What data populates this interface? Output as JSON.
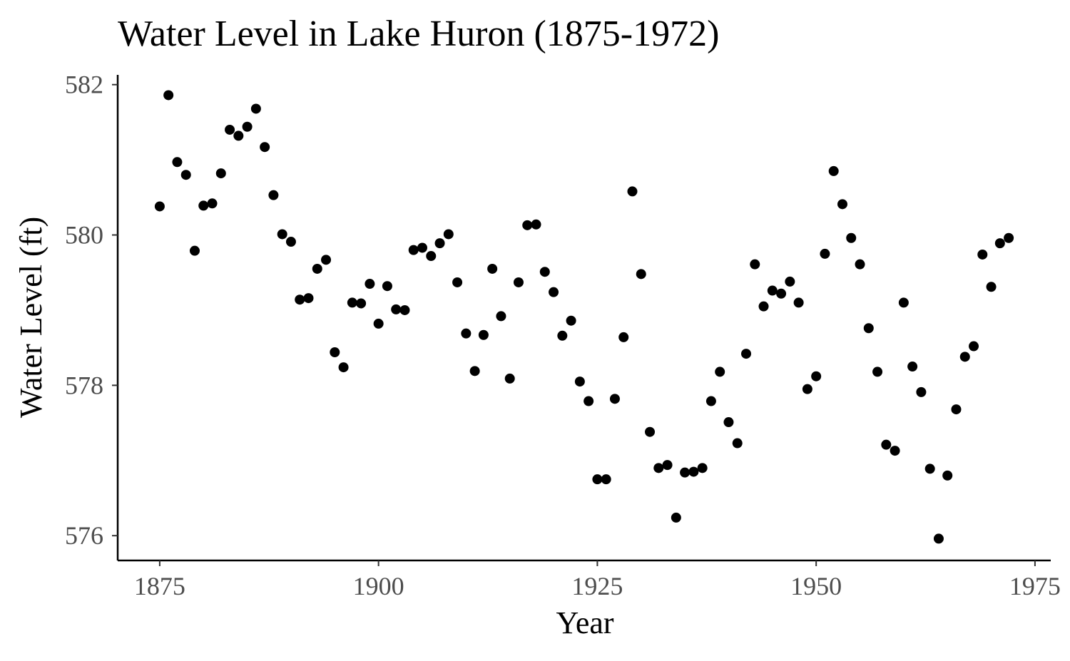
{
  "chart_data": {
    "type": "scatter",
    "title": "Water Level in Lake Huron (1875-1972)",
    "xlabel": "Year",
    "ylabel": "Water Level (ft)",
    "xlim": [
      1870.2,
      1976.8
    ],
    "ylim": [
      575.67,
      582.13
    ],
    "x_ticks": [
      1875,
      1900,
      1925,
      1950,
      1975
    ],
    "x_tick_labels": [
      "1875",
      "1900",
      "1925",
      "1950",
      "1975"
    ],
    "y_ticks": [
      576,
      578,
      580,
      582
    ],
    "y_tick_labels": [
      "576",
      "578",
      "580",
      "582"
    ],
    "grid": false,
    "legend": "none",
    "point_color": "#000000",
    "x": [
      1875,
      1876,
      1877,
      1878,
      1879,
      1880,
      1881,
      1882,
      1883,
      1884,
      1885,
      1886,
      1887,
      1888,
      1889,
      1890,
      1891,
      1892,
      1893,
      1894,
      1895,
      1896,
      1897,
      1898,
      1899,
      1900,
      1901,
      1902,
      1903,
      1904,
      1905,
      1906,
      1907,
      1908,
      1909,
      1910,
      1911,
      1912,
      1913,
      1914,
      1915,
      1916,
      1917,
      1918,
      1919,
      1920,
      1921,
      1922,
      1923,
      1924,
      1925,
      1926,
      1927,
      1928,
      1929,
      1930,
      1931,
      1932,
      1933,
      1934,
      1935,
      1936,
      1937,
      1938,
      1939,
      1940,
      1941,
      1942,
      1943,
      1944,
      1945,
      1946,
      1947,
      1948,
      1949,
      1950,
      1951,
      1952,
      1953,
      1954,
      1955,
      1956,
      1957,
      1958,
      1959,
      1960,
      1961,
      1962,
      1963,
      1964,
      1965,
      1966,
      1967,
      1968,
      1969,
      1970,
      1971,
      1972
    ],
    "y": [
      580.38,
      581.86,
      580.97,
      580.8,
      579.79,
      580.39,
      580.42,
      580.82,
      581.4,
      581.32,
      581.44,
      581.68,
      581.17,
      580.53,
      580.01,
      579.91,
      579.14,
      579.16,
      579.55,
      579.67,
      578.44,
      578.24,
      579.1,
      579.09,
      579.35,
      578.82,
      579.32,
      579.01,
      579.0,
      579.8,
      579.83,
      579.72,
      579.89,
      580.01,
      579.37,
      578.69,
      578.19,
      578.67,
      579.55,
      578.92,
      578.09,
      579.37,
      580.13,
      580.14,
      579.51,
      579.24,
      578.66,
      578.86,
      578.05,
      577.79,
      576.75,
      576.75,
      577.82,
      578.64,
      580.58,
      579.48,
      577.38,
      576.9,
      576.94,
      576.24,
      576.84,
      576.85,
      576.9,
      577.79,
      578.18,
      577.51,
      577.23,
      578.42,
      579.61,
      579.05,
      579.26,
      579.22,
      579.38,
      579.1,
      577.95,
      578.12,
      579.75,
      580.85,
      580.41,
      579.96,
      579.61,
      578.76,
      578.18,
      577.21,
      577.13,
      579.1,
      578.25,
      577.91,
      576.89,
      575.96,
      576.8,
      577.68,
      578.38,
      578.52,
      579.74,
      579.31,
      579.89,
      579.96
    ]
  }
}
